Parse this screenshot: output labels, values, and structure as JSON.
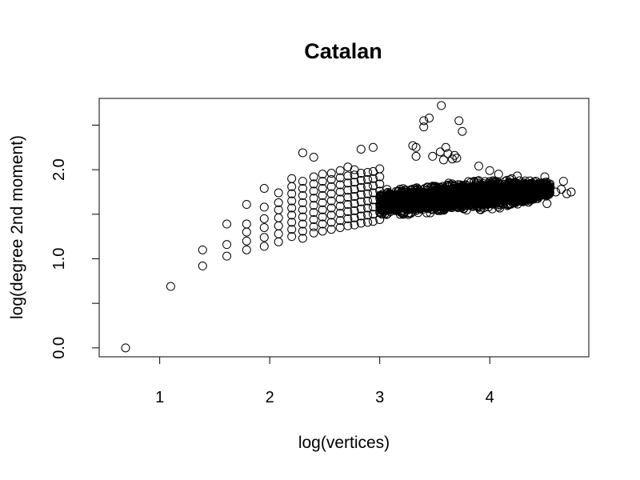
{
  "chart_data": {
    "type": "scatter",
    "title": "Catalan",
    "xlabel": "log(vertices)",
    "ylabel": "log(degree 2nd moment)",
    "xlim": [
      0.45,
      4.9
    ],
    "ylim": [
      -0.1,
      2.8
    ],
    "x_ticks": [
      1,
      2,
      3,
      4
    ],
    "x_tick_labels": [
      "1",
      "2",
      "3",
      "4"
    ],
    "y_ticks": [
      0.0,
      0.5,
      1.0,
      1.5,
      2.0,
      2.5
    ],
    "y_tick_labels": [
      "0.0",
      "",
      "1.0",
      "",
      "2.0",
      ""
    ],
    "grid": false,
    "marker": "open-circle",
    "marker_color": "#000000",
    "points": [
      [
        0.69,
        0.0
      ],
      [
        1.1,
        0.69
      ],
      [
        1.39,
        0.92
      ],
      [
        1.39,
        1.1
      ],
      [
        1.61,
        1.03
      ],
      [
        1.61,
        1.16
      ],
      [
        1.61,
        1.39
      ],
      [
        1.79,
        1.1
      ],
      [
        1.79,
        1.2
      ],
      [
        1.79,
        1.3
      ],
      [
        1.79,
        1.39
      ],
      [
        1.79,
        1.61
      ],
      [
        1.95,
        1.14
      ],
      [
        1.95,
        1.24
      ],
      [
        1.95,
        1.35
      ],
      [
        1.95,
        1.45
      ],
      [
        1.95,
        1.58
      ],
      [
        1.95,
        1.79
      ],
      [
        2.08,
        1.19
      ],
      [
        2.08,
        1.28
      ],
      [
        2.08,
        1.37
      ],
      [
        2.08,
        1.46
      ],
      [
        2.08,
        1.55
      ],
      [
        2.08,
        1.63
      ],
      [
        2.08,
        1.74
      ],
      [
        2.2,
        1.25
      ],
      [
        2.2,
        1.33
      ],
      [
        2.2,
        1.41
      ],
      [
        2.2,
        1.49
      ],
      [
        2.2,
        1.57
      ],
      [
        2.2,
        1.65
      ],
      [
        2.2,
        1.73
      ],
      [
        2.2,
        1.81
      ],
      [
        2.2,
        1.9
      ],
      [
        2.3,
        1.23
      ],
      [
        2.3,
        1.31
      ],
      [
        2.3,
        1.39
      ],
      [
        2.3,
        1.47
      ],
      [
        2.3,
        1.55
      ],
      [
        2.3,
        1.63
      ],
      [
        2.3,
        1.71
      ],
      [
        2.3,
        1.79
      ],
      [
        2.3,
        1.87
      ],
      [
        2.3,
        2.19
      ],
      [
        2.4,
        1.29
      ],
      [
        2.4,
        1.36
      ],
      [
        2.4,
        1.44
      ],
      [
        2.4,
        1.52
      ],
      [
        2.4,
        1.6
      ],
      [
        2.4,
        1.68
      ],
      [
        2.4,
        1.76
      ],
      [
        2.4,
        1.84
      ],
      [
        2.4,
        1.92
      ],
      [
        2.4,
        2.14
      ],
      [
        2.48,
        1.31
      ],
      [
        2.48,
        1.39
      ],
      [
        2.48,
        1.47
      ],
      [
        2.48,
        1.55
      ],
      [
        2.48,
        1.63
      ],
      [
        2.48,
        1.71
      ],
      [
        2.48,
        1.79
      ],
      [
        2.48,
        1.87
      ],
      [
        2.48,
        1.95
      ],
      [
        2.56,
        1.33
      ],
      [
        2.56,
        1.41
      ],
      [
        2.56,
        1.49
      ],
      [
        2.56,
        1.57
      ],
      [
        2.56,
        1.65
      ],
      [
        2.56,
        1.73
      ],
      [
        2.56,
        1.81
      ],
      [
        2.56,
        1.89
      ],
      [
        2.56,
        1.96
      ],
      [
        2.64,
        1.35
      ],
      [
        2.64,
        1.43
      ],
      [
        2.64,
        1.51
      ],
      [
        2.64,
        1.59
      ],
      [
        2.64,
        1.67
      ],
      [
        2.64,
        1.75
      ],
      [
        2.64,
        1.83
      ],
      [
        2.64,
        1.91
      ],
      [
        2.64,
        1.99
      ],
      [
        2.71,
        1.37
      ],
      [
        2.71,
        1.45
      ],
      [
        2.71,
        1.53
      ],
      [
        2.71,
        1.61
      ],
      [
        2.71,
        1.69
      ],
      [
        2.71,
        1.77
      ],
      [
        2.71,
        1.85
      ],
      [
        2.71,
        1.93
      ],
      [
        2.71,
        2.03
      ],
      [
        2.77,
        1.38
      ],
      [
        2.77,
        1.46
      ],
      [
        2.77,
        1.54
      ],
      [
        2.77,
        1.62
      ],
      [
        2.77,
        1.7
      ],
      [
        2.77,
        1.78
      ],
      [
        2.77,
        1.86
      ],
      [
        2.77,
        1.94
      ],
      [
        2.77,
        2.0
      ],
      [
        2.83,
        1.4
      ],
      [
        2.83,
        1.48
      ],
      [
        2.83,
        1.56
      ],
      [
        2.83,
        1.64
      ],
      [
        2.83,
        1.72
      ],
      [
        2.83,
        1.8
      ],
      [
        2.83,
        1.88
      ],
      [
        2.83,
        1.96
      ],
      [
        2.83,
        2.23
      ],
      [
        2.89,
        1.41
      ],
      [
        2.89,
        1.49
      ],
      [
        2.89,
        1.57
      ],
      [
        2.89,
        1.65
      ],
      [
        2.89,
        1.73
      ],
      [
        2.89,
        1.81
      ],
      [
        2.89,
        1.89
      ],
      [
        2.89,
        1.97
      ],
      [
        2.94,
        1.42
      ],
      [
        2.94,
        1.5
      ],
      [
        2.94,
        1.58
      ],
      [
        2.94,
        1.66
      ],
      [
        2.94,
        1.74
      ],
      [
        2.94,
        1.82
      ],
      [
        2.94,
        1.9
      ],
      [
        2.94,
        1.98
      ],
      [
        2.94,
        2.25
      ],
      [
        3.0,
        1.44
      ],
      [
        3.0,
        1.52
      ],
      [
        3.0,
        1.6
      ],
      [
        3.0,
        1.68
      ],
      [
        3.0,
        1.76
      ],
      [
        3.0,
        1.84
      ],
      [
        3.0,
        1.92
      ],
      [
        3.0,
        2.01
      ],
      [
        3.3,
        2.27
      ],
      [
        3.33,
        2.25
      ],
      [
        3.33,
        2.15
      ],
      [
        3.4,
        2.48
      ],
      [
        3.4,
        2.55
      ],
      [
        3.45,
        2.58
      ],
      [
        3.56,
        2.72
      ],
      [
        3.48,
        2.15
      ],
      [
        3.55,
        2.2
      ],
      [
        3.58,
        2.11
      ],
      [
        3.6,
        2.25
      ],
      [
        3.62,
        2.18
      ],
      [
        3.66,
        2.12
      ],
      [
        3.68,
        2.16
      ],
      [
        3.7,
        2.13
      ],
      [
        3.72,
        2.55
      ],
      [
        3.75,
        2.43
      ],
      [
        3.9,
        2.04
      ],
      [
        4.0,
        1.99
      ],
      [
        4.08,
        1.95
      ],
      [
        4.2,
        1.9
      ],
      [
        4.25,
        1.93
      ],
      [
        4.45,
        1.85
      ],
      [
        4.5,
        1.92
      ],
      [
        4.55,
        1.8
      ],
      [
        4.6,
        1.75
      ],
      [
        4.65,
        1.78
      ],
      [
        4.67,
        1.87
      ],
      [
        4.7,
        1.73
      ],
      [
        4.74,
        1.75
      ],
      [
        4.52,
        1.62
      ],
      [
        4.3,
        1.64
      ]
    ],
    "dense_region": {
      "x_range": [
        3.0,
        4.55
      ],
      "y_center": [
        1.62,
        1.78
      ],
      "y_spread": 0.19
    }
  }
}
